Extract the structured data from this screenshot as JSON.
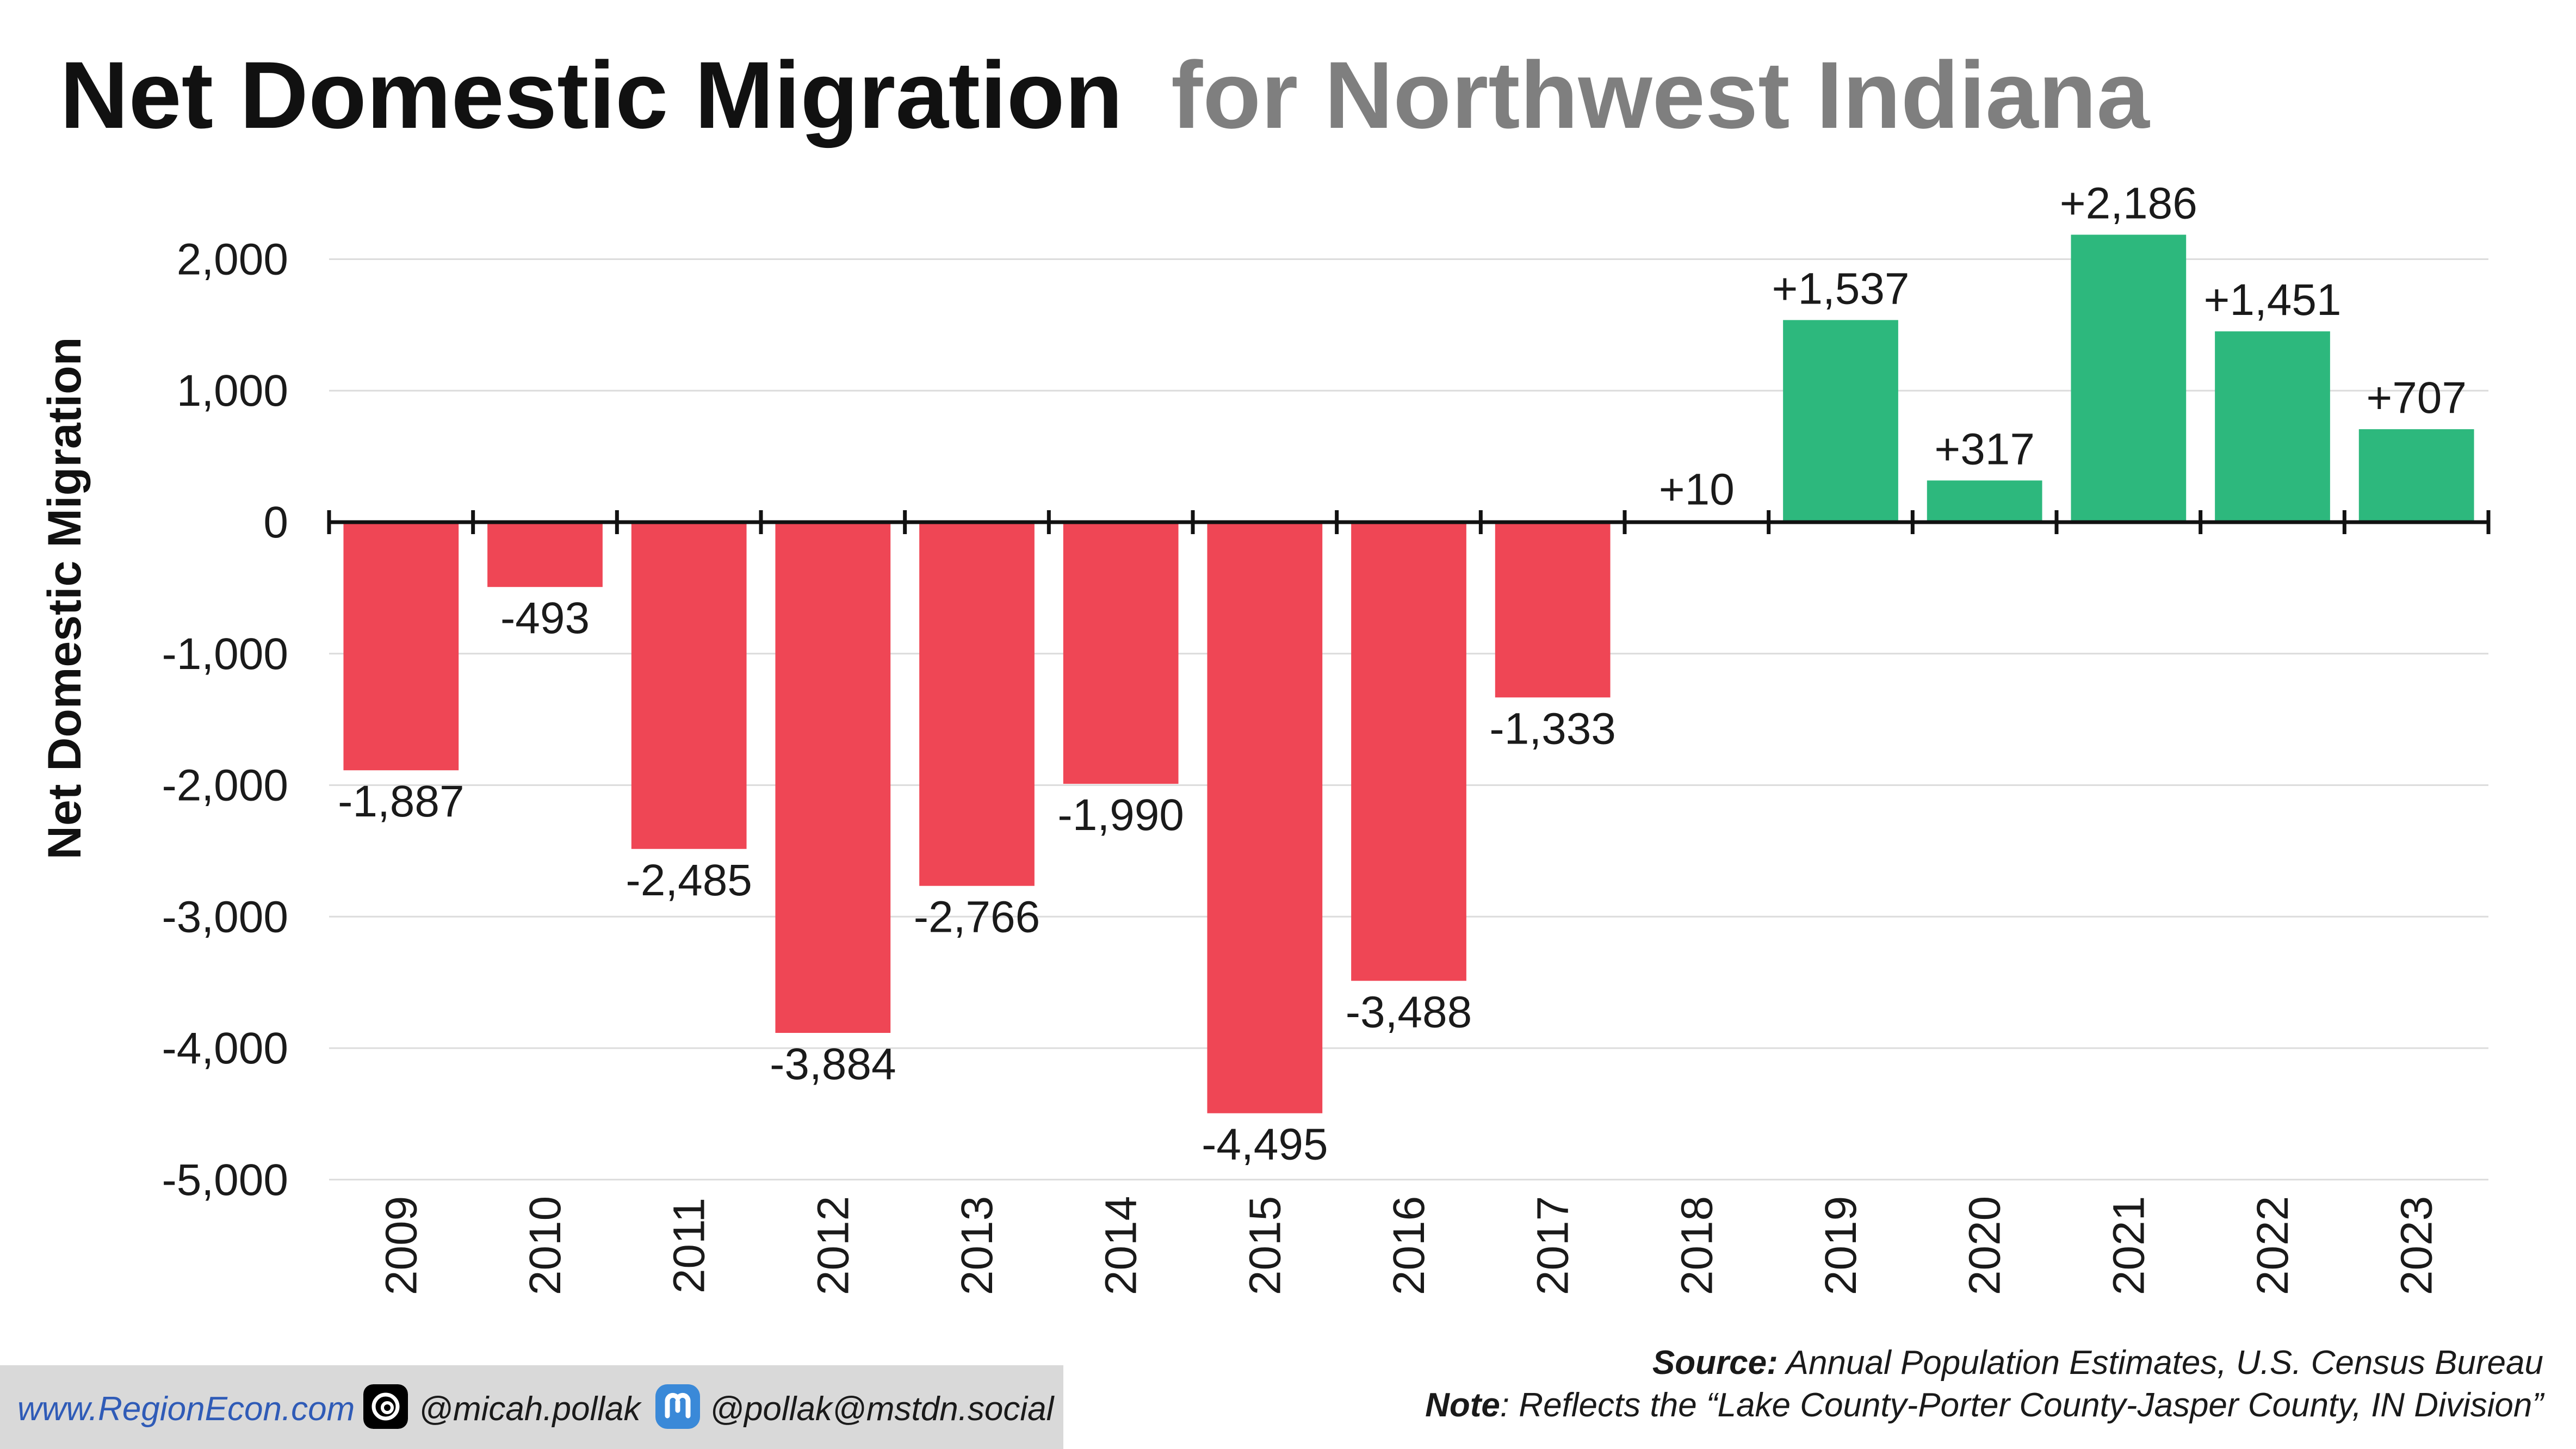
{
  "header": {
    "title_main": "Net Domestic Migration",
    "title_sub": "for Northwest Indiana"
  },
  "chart_data": {
    "type": "bar",
    "ylabel": "Net Domestic Migration",
    "ylim": [
      -5000,
      2500
    ],
    "yticks": [
      2000,
      1000,
      0,
      -1000,
      -2000,
      -3000,
      -4000,
      -5000
    ],
    "ytick_labels": [
      "2,000",
      "1,000",
      "0",
      "-1,000",
      "-2,000",
      "-3,000",
      "-4,000",
      "-5,000"
    ],
    "categories": [
      "2009",
      "2010",
      "2011",
      "2012",
      "2013",
      "2014",
      "2015",
      "2016",
      "2017",
      "2018",
      "2019",
      "2020",
      "2021",
      "2022",
      "2023"
    ],
    "values": [
      -1887,
      -493,
      -2485,
      -3884,
      -2766,
      -1990,
      -4495,
      -3488,
      -1333,
      10,
      1537,
      317,
      2186,
      1451,
      707
    ],
    "data_labels": [
      "-1,887",
      "-493",
      "-2,485",
      "-3,884",
      "-2,766",
      "-1,990",
      "-4,495",
      "-3,488",
      "-1,333",
      "+10",
      "+1,537",
      "+317",
      "+2,186",
      "+1,451",
      "+707"
    ],
    "colors": {
      "positive": "#2db87d",
      "negative": "#ef4655"
    },
    "grid": true
  },
  "footer": {
    "website": "www.RegionEcon.com",
    "threads_handle": "@micah.pollak",
    "mastodon_handle": "@pollak@mstdn.social",
    "threads_icon": "threads-icon",
    "mastodon_icon": "mastodon-icon",
    "source_label": "Source:",
    "source_text": " Annual Population Estimates, U.S. Census Bureau",
    "note_label": "Note",
    "note_text": ": Reflects the “Lake County-Porter County-Jasper County, IN Division”"
  }
}
